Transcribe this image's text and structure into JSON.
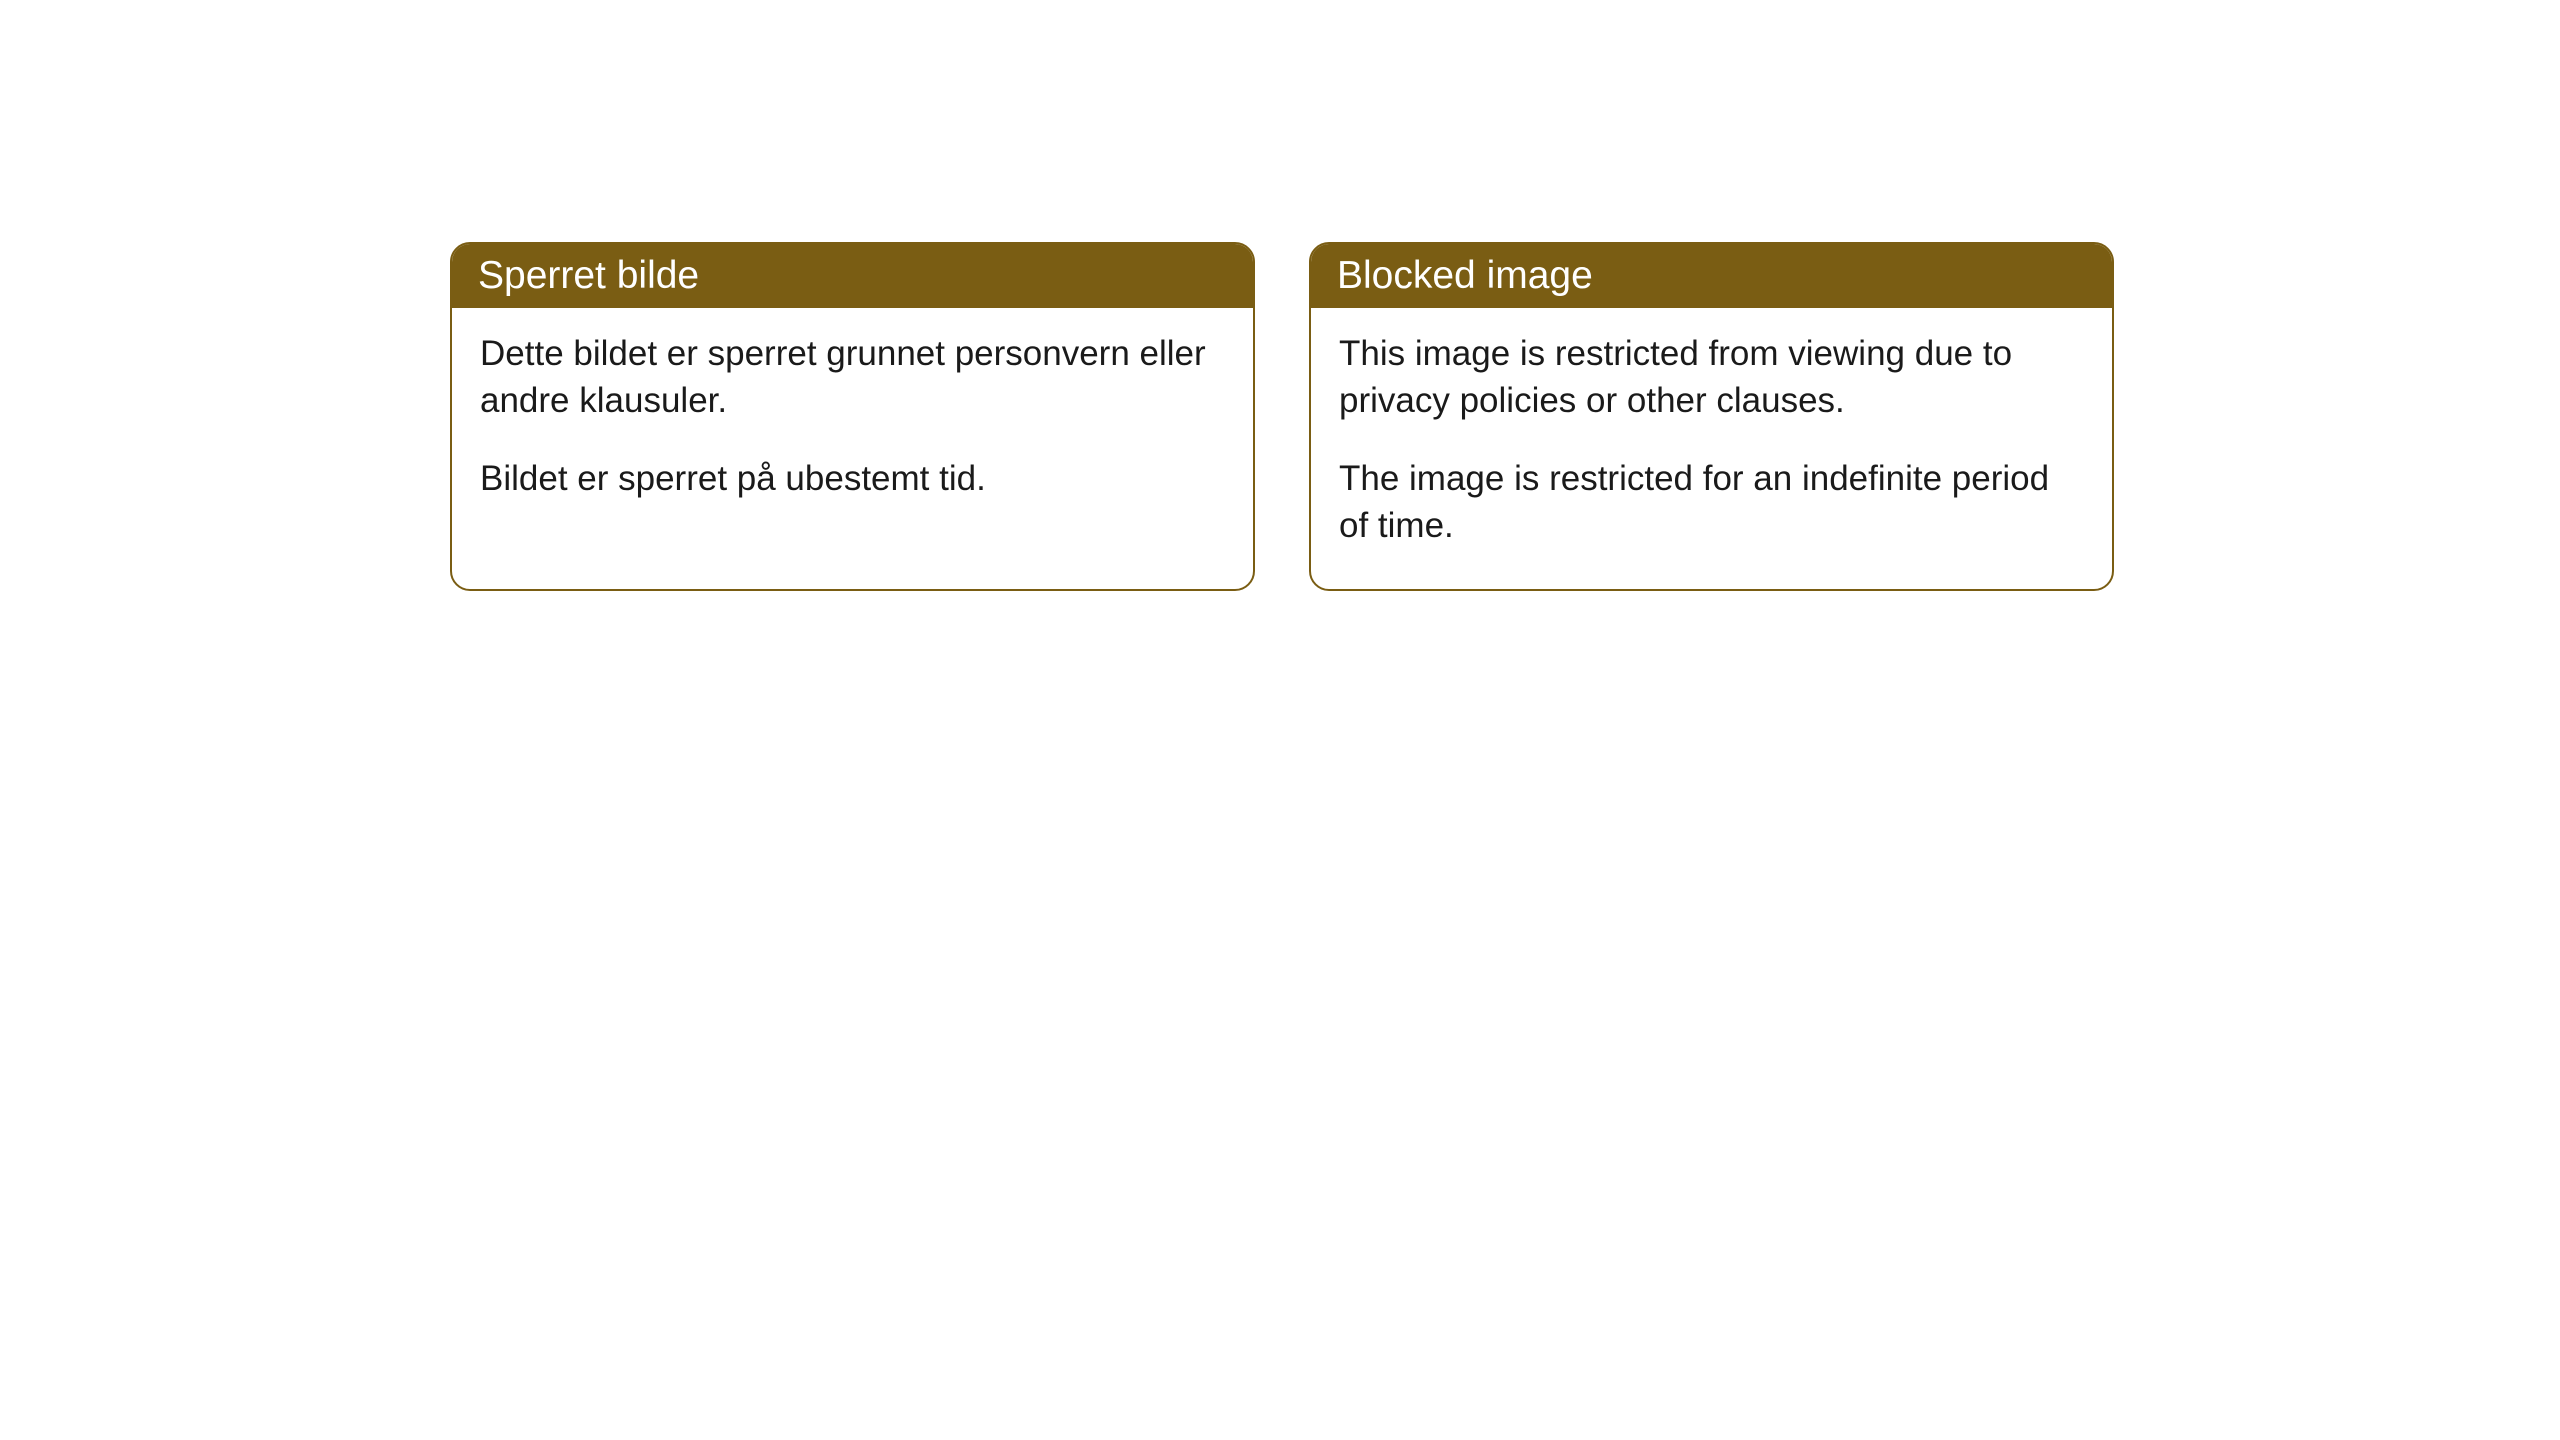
{
  "cards": [
    {
      "title": "Sperret bilde",
      "paragraph1": "Dette bildet er sperret grunnet personvern eller andre klausuler.",
      "paragraph2": "Bildet er sperret på ubestemt tid."
    },
    {
      "title": "Blocked image",
      "paragraph1": "This image is restricted from viewing due to privacy policies or other clauses.",
      "paragraph2": "The image is restricted for an indefinite period of time."
    }
  ],
  "styling": {
    "header_background": "#7a5d13",
    "header_text_color": "#ffffff",
    "border_color": "#7a5d13",
    "body_background": "#ffffff",
    "body_text_color": "#1a1a1a",
    "border_radius": 20,
    "title_fontsize": 39,
    "body_fontsize": 35
  }
}
